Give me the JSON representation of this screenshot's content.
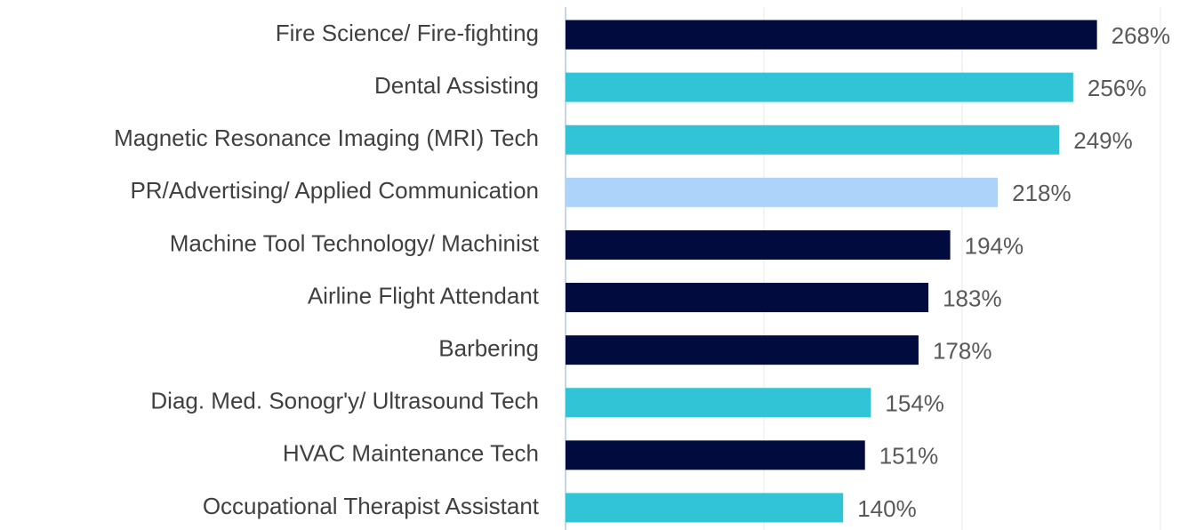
{
  "chart_data": {
    "type": "barh",
    "categories": [
      "Fire Science/ Fire-fighting",
      "Dental Assisting",
      "Magnetic Resonance Imaging (MRI) Tech",
      "PR/Advertising/ Applied Communication",
      "Machine Tool Technology/ Machinist",
      "Airline Flight Attendant",
      "Barbering",
      "Diag. Med. Sonogr'y/ Ultrasound Tech",
      "HVAC Maintenance Tech",
      "Occupational Therapist Assistant"
    ],
    "values": [
      268,
      256,
      249,
      218,
      194,
      183,
      178,
      154,
      151,
      140
    ],
    "value_labels": [
      "268%",
      "256%",
      "249%",
      "218%",
      "194%",
      "183%",
      "178%",
      "154%",
      "151%",
      "140%"
    ],
    "colors": [
      "#020b3d",
      "#31c3d6",
      "#31c3d6",
      "#add3fb",
      "#020b3d",
      "#020b3d",
      "#020b3d",
      "#31c3d6",
      "#020b3d",
      "#31c3d6"
    ],
    "xlim": [
      0,
      300
    ],
    "xticks": [
      0,
      100,
      200,
      300
    ],
    "grid": true
  }
}
